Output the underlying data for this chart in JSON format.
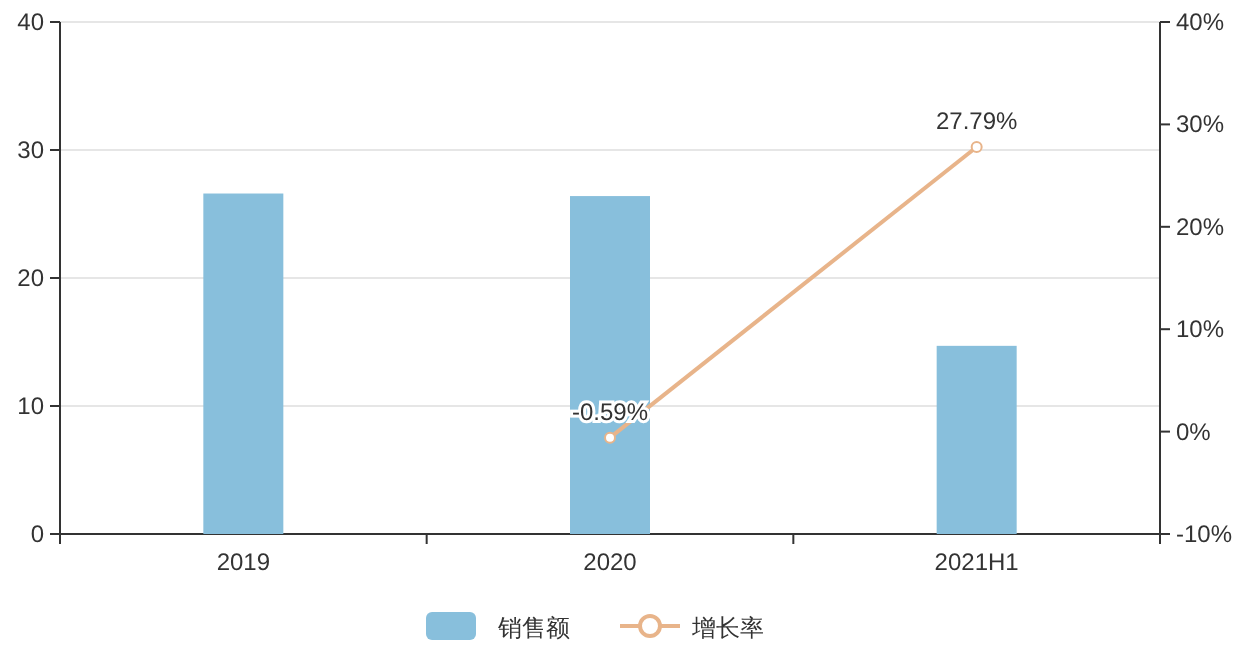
{
  "chart_data": {
    "type": "bar",
    "categories": [
      "2019",
      "2020",
      "2021H1"
    ],
    "ylim": [
      0,
      40
    ],
    "yticks": [
      0,
      10,
      20,
      30,
      40
    ],
    "y2lim": [
      -10,
      40
    ],
    "y2ticks": [
      {
        "value": -10,
        "label": "-10%"
      },
      {
        "value": 0,
        "label": "0%"
      },
      {
        "value": 10,
        "label": "10%"
      },
      {
        "value": 20,
        "label": "20%"
      },
      {
        "value": 30,
        "label": "30%"
      },
      {
        "value": 40,
        "label": "40%"
      }
    ],
    "grid": "y",
    "legend": "bottom",
    "series": [
      {
        "name": "销售额",
        "color": "#88bfdc",
        "values": [
          26.6,
          26.4,
          14.7
        ]
      },
      {
        "name": "增长率",
        "type": "line",
        "axis": "y2",
        "marker": "circle",
        "color": "#e8b48a",
        "values": [
          null,
          -0.59,
          27.79
        ],
        "value_labels": [
          null,
          "-0.59%",
          "27.79%"
        ]
      }
    ]
  }
}
